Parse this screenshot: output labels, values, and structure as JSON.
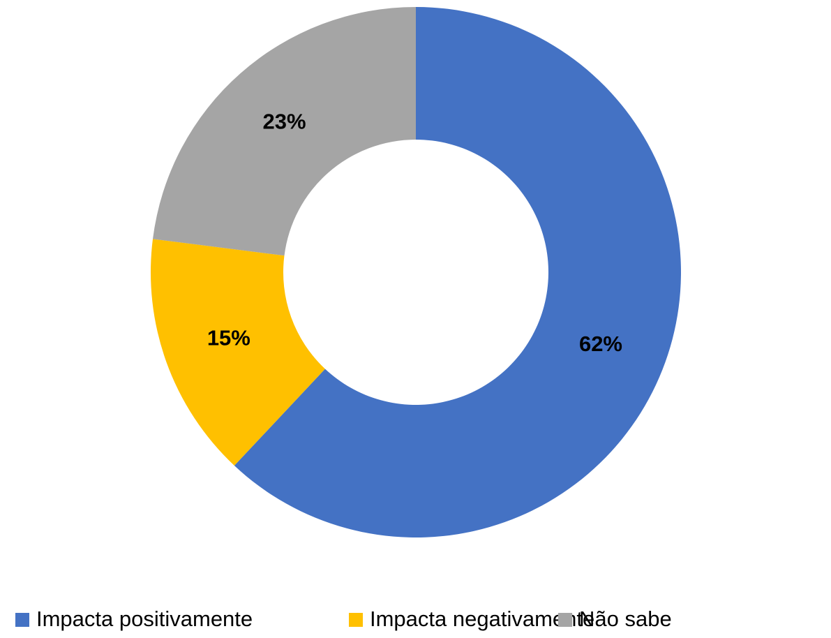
{
  "chart_data": {
    "type": "donut",
    "categories": [
      "Impacta positivamente",
      "Impacta negativamente",
      "Não sabe"
    ],
    "values": [
      62,
      15,
      23
    ],
    "value_labels": [
      "62%",
      "15%",
      "23%"
    ],
    "colors": [
      "#4472c4",
      "#ffc000",
      "#a5a5a5"
    ],
    "legend": "bottom"
  }
}
